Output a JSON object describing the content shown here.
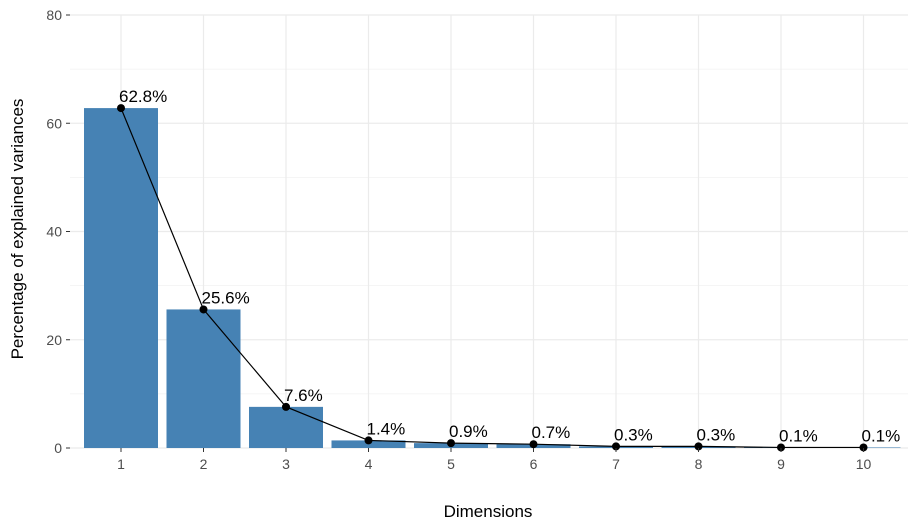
{
  "chart_data": {
    "type": "bar",
    "title": "",
    "xlabel": "Dimensions",
    "ylabel": "Percentage of explained variances",
    "categories": [
      "1",
      "2",
      "3",
      "4",
      "5",
      "6",
      "7",
      "8",
      "9",
      "10"
    ],
    "values": [
      62.8,
      25.6,
      7.6,
      1.4,
      0.9,
      0.7,
      0.3,
      0.3,
      0.1,
      0.1
    ],
    "value_labels": [
      "62.8%",
      "25.6%",
      "7.6%",
      "1.4%",
      "0.9%",
      "0.7%",
      "0.3%",
      "0.3%",
      "0.1%",
      "0.1%"
    ],
    "overlay": "line with points connecting bar tops",
    "ylim": [
      0,
      80
    ],
    "yticks": [
      0,
      20,
      40,
      60,
      80
    ],
    "grid": true,
    "legend": "none",
    "colors": {
      "bar": "#4682b4",
      "line": "#000000",
      "grid": "#ebebeb",
      "background": "#ffffff"
    }
  }
}
